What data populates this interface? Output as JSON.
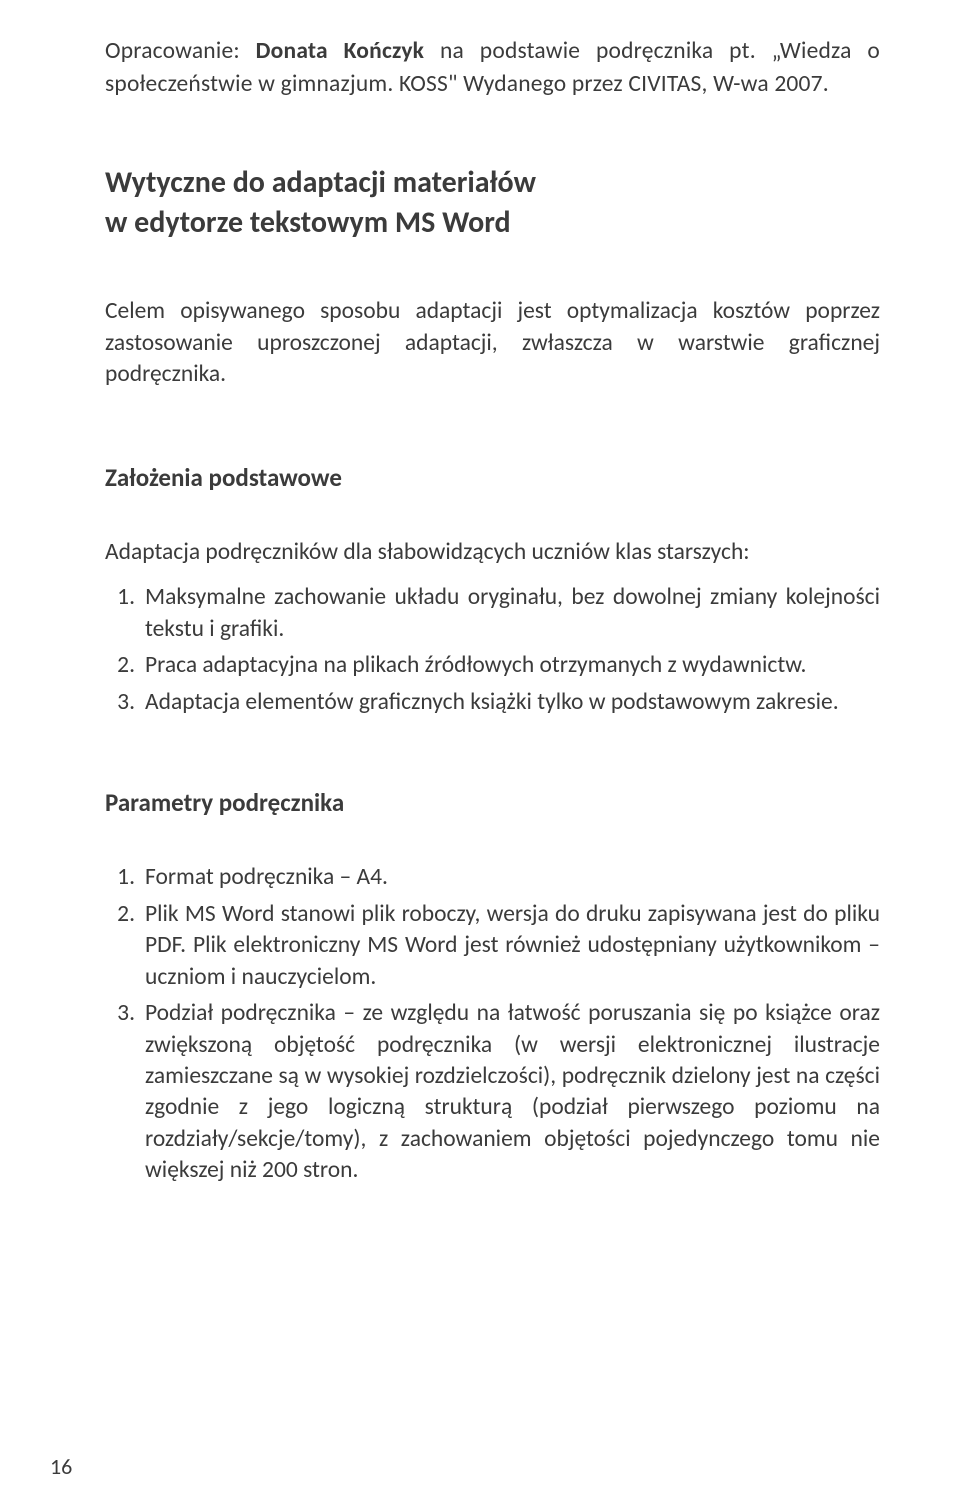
{
  "credit": {
    "prefix": "Opracowanie: ",
    "author": "Donata Kończyk",
    "rest": " na podstawie podręcznika pt. „Wiedza o społeczeństwie w gimnazjum. KOSS\" Wydanego przez CIVITAS, W-wa 2007."
  },
  "title_line1": "Wytyczne do adaptacji materiałów",
  "title_line2": "w edytorze tekstowym MS Word",
  "intro": "Celem opisywanego sposobu adaptacji jest optymalizacja kosztów poprzez zastosowanie uproszczonej adaptacji, zwłaszcza w warstwie graficznej podręcznika.",
  "section1": {
    "heading": "Założenia podstawowe",
    "lead": "Adaptacja podręczników dla słabowidzących uczniów klas starszych:",
    "items": [
      "Maksymalne zachowanie układu oryginału, bez dowolnej zmiany kolejności tekstu i grafiki.",
      "Praca adaptacyjna na plikach źródłowych otrzymanych z wydawnictw.",
      "Adaptacja elementów graficznych książki tylko w podstawowym zakresie."
    ]
  },
  "section2": {
    "heading": "Parametry podręcznika",
    "items": [
      "Format podręcznika – A4.",
      "Plik MS Word stanowi plik roboczy, wersja do druku zapisywana jest do pliku PDF. Plik elektroniczny MS Word jest również udostępniany użytkownikom – uczniom i nauczycielom.",
      "Podział podręcznika – ze względu na łatwość poruszania się po książce oraz zwiększoną objętość podręcznika (w wersji elektronicznej ilustracje zamieszczane są w wysokiej rozdzielczości), podręcznik dzielony jest na części zgodnie z jego logiczną strukturą (podział pierwszego poziomu na rozdziały/sekcje/tomy), z zachowaniem objętości pojedynczego tomu nie większej niż 200 stron."
    ]
  },
  "page_number": "16"
}
